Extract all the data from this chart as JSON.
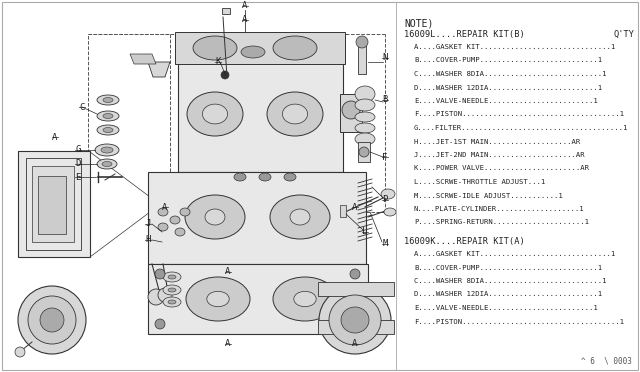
{
  "bg_color": "#ffffff",
  "outer_border_color": "#aaaaaa",
  "diagram_bg": "#ffffff",
  "text_color": "#222222",
  "note_label": "NOTE)",
  "kit_b_header": "16009L....REPAIR KIT(B)",
  "kit_b_qty": "Q'TY",
  "kit_b_items": [
    "A....GASKET KIT..............................1",
    "B....COVER-PUMP...........................1",
    "C....WASHER 8DIA...........................1",
    "D....WASHER 12DIA.........................1",
    "E....VALVE-NEEDLE........................1",
    "F....PISTON....................................1",
    "G....FILTER.....................................1",
    "H....JET-1ST MAIN...................AR",
    "J....JET-2ND MAIN....................AR",
    "K....POWER VALVE......................AR",
    "L....SCRWE-THROTTLE ADJUST...1",
    "M....SCRWE-IDLE ADJUST...........1",
    "N....PLATE-CYLINDER...................1",
    "P....SPRING-RETURN.....................1"
  ],
  "kit_a_header": "16009K....REPAIR KIT(A)",
  "kit_a_items": [
    "A....GASKET KIT..............................1",
    "B....COVER-PUMP...........................1",
    "C....WASHER 8DIA...........................1",
    "D....WASHER 12DIA.........................1",
    "E....VALVE-NEEDLE........................1",
    "F....PISTON....................................1"
  ],
  "footer": "^ 6  \\ 0003",
  "panel_split": 0.62,
  "note_fs": 7.0,
  "header_fs": 6.2,
  "item_fs": 5.2,
  "label_fs": 6.5
}
